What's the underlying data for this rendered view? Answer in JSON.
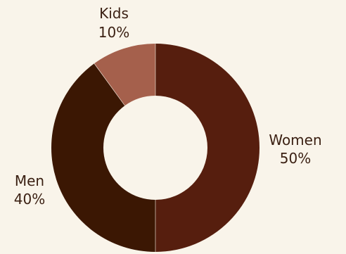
{
  "chart_data": {
    "type": "pie",
    "donut": true,
    "start": "top",
    "direction": "clockwise",
    "slices": [
      {
        "label": "Women",
        "value": 50,
        "value_label": "50%",
        "color": "#561e0e"
      },
      {
        "label": "Men",
        "value": 40,
        "value_label": "40%",
        "color": "#3b1703"
      },
      {
        "label": "Kids",
        "value": 10,
        "value_label": "10%",
        "color": "#a5604c"
      }
    ],
    "background": "#f9f4ea",
    "text_color": "#3a1f12"
  }
}
